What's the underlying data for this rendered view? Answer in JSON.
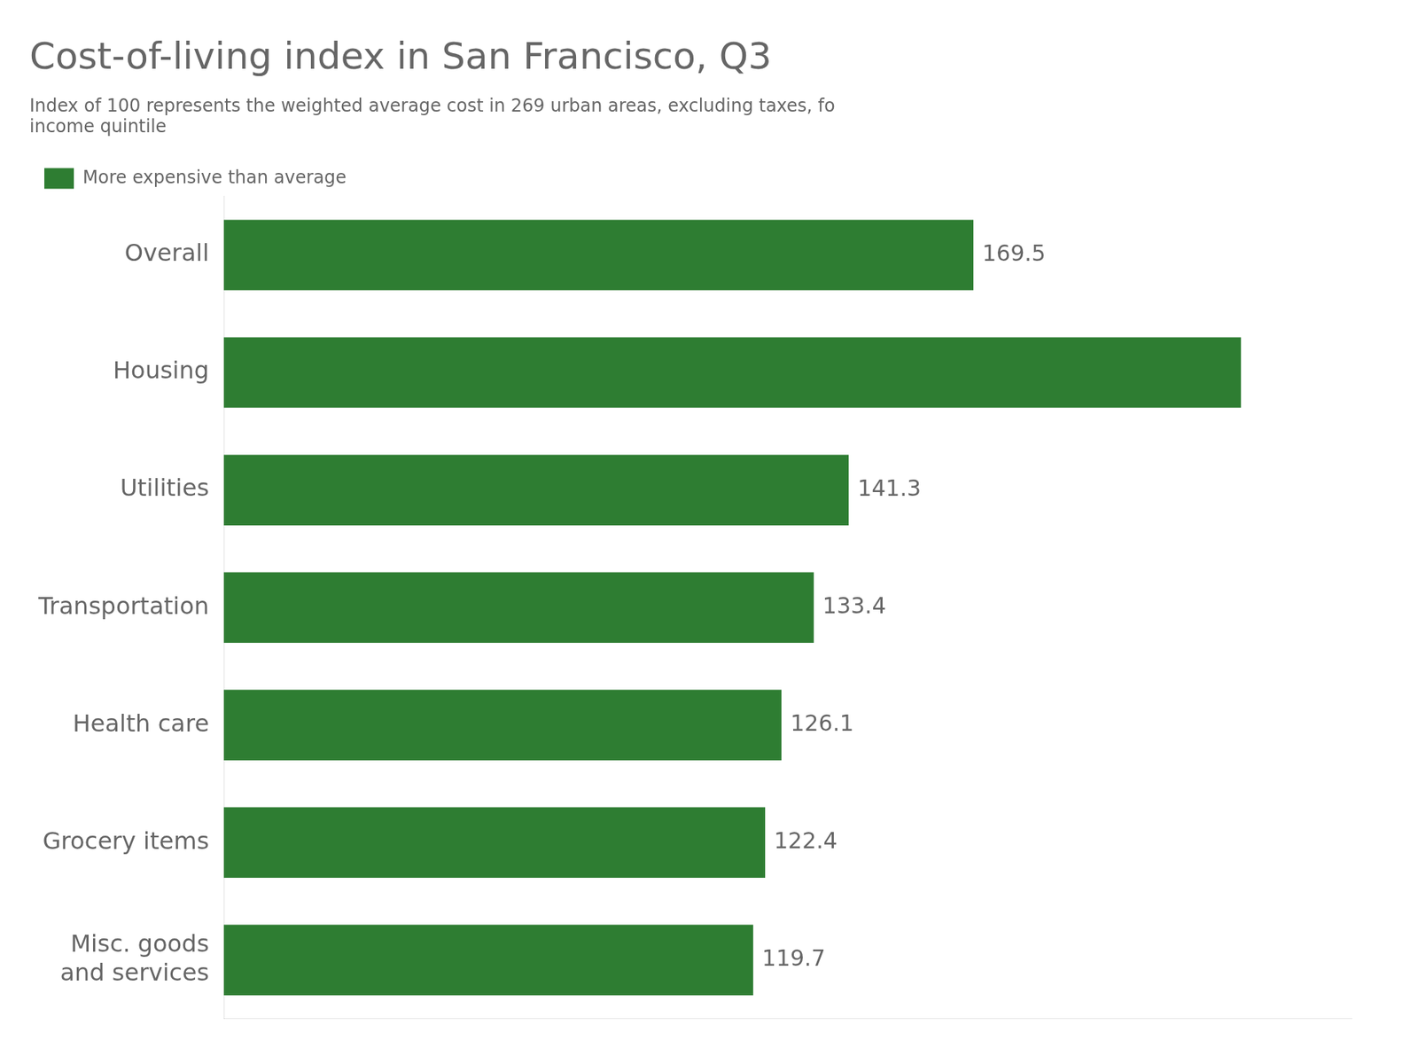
{
  "chart_data": {
    "type": "bar",
    "orientation": "horizontal",
    "title": "Cost-of-living index in San Francisco, Q3",
    "subtitle": [
      "Index of 100 represents the weighted average cost in 269 urban areas, excluding taxes, fo",
      "income quintile"
    ],
    "categories": [
      "Overall",
      "Housing",
      "Utilities",
      "Transportation",
      "Health care",
      "Grocery items",
      "Misc. goods\nand services"
    ],
    "series": [
      {
        "name": "More expensive than average",
        "color": "#2e7d32",
        "values": [
          169.5,
          230.0,
          141.3,
          133.4,
          126.1,
          122.4,
          119.7
        ],
        "value_labels": [
          "169.5",
          null,
          "141.3",
          "133.4",
          "126.1",
          "122.4",
          "119.7"
        ]
      }
    ],
    "xlim": [
      0,
      255
    ],
    "grid": false,
    "legend": "upper left",
    "data_labels": true,
    "tick_labels": "y"
  }
}
